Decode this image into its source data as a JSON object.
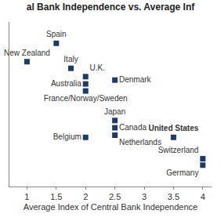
{
  "chart_data": {
    "type": "scatter",
    "title": "al Bank Independence vs. Average Inf",
    "x_label": "Average Index of Central Bank Independence",
    "labels": [
      "Spain",
      "New Zealand",
      "Italy",
      "U.K.",
      "Australia",
      "France/Norway/Sweden",
      "Denmark",
      "Japan",
      "Canada",
      "Belgium",
      "Netherlands",
      "United States",
      "Switzerland",
      "Germany"
    ],
    "x": [
      1.5,
      1,
      1.75,
      2,
      2,
      2,
      2.5,
      2.5,
      2.5,
      2,
      2.5,
      3.5,
      4,
      4
    ],
    "values": [
      8.5,
      7.64,
      7.33,
      6.94,
      6.6,
      6.27,
      6.78,
      4.89,
      4.55,
      4.1,
      4.2,
      4.1,
      3.1,
      2.8
    ],
    "color": "#1f3b63",
    "marker": "square",
    "xlim": [
      0.7,
      4.15
    ],
    "xticks": [
      1,
      1.5,
      2,
      2.5,
      3,
      3.5,
      4
    ],
    "ylim": [
      1.8,
      9.5
    ],
    "yticks": [],
    "grid": false,
    "tick_labels": "x"
  }
}
